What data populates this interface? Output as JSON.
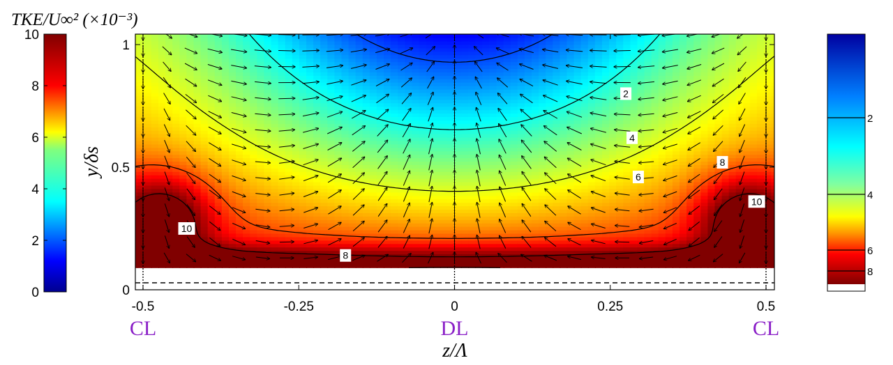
{
  "chart_data": {
    "type": "heatmap",
    "title": "",
    "colorbar_label": "TKE/U∞² (×10⁻³)",
    "xlabel": "z/Λ",
    "ylabel": "y/δs",
    "xlim": [
      -0.52,
      0.52
    ],
    "ylim": [
      0,
      1.05
    ],
    "x_ticks": [
      -0.5,
      -0.25,
      0,
      0.25,
      0.5
    ],
    "x_tick_labels": [
      "-0.5",
      "-0.25",
      "0",
      "0.25",
      "0.5"
    ],
    "y_ticks": [
      0,
      0.5,
      1
    ],
    "y_tick_labels": [
      "0",
      "0.5",
      "1"
    ],
    "colorbar_range": [
      0,
      10
    ],
    "colorbar_ticks": [
      0,
      2,
      4,
      6,
      8,
      10
    ],
    "colorbar_tick_labels": [
      "0",
      "2",
      "4",
      "6",
      "8",
      "10"
    ],
    "right_colorbar_ticks": [
      2,
      4,
      6,
      8
    ],
    "right_colorbar_tick_labels": [
      "2",
      "4",
      "6",
      "8"
    ],
    "position_markers": [
      {
        "label": "CL",
        "z": -0.5
      },
      {
        "label": "DL",
        "z": 0
      },
      {
        "label": "CL",
        "z": 0.5
      }
    ],
    "contour_levels": [
      {
        "level": 2,
        "label": "2"
      },
      {
        "level": 4,
        "label": "4"
      },
      {
        "level": 6,
        "label": "6"
      },
      {
        "level": 8,
        "label": "8"
      },
      {
        "level": 10,
        "label": "10"
      }
    ],
    "contour_label_spots": [
      {
        "text": "2",
        "z": 0.275,
        "y": 0.8
      },
      {
        "text": "4",
        "z": 0.285,
        "y": 0.62
      },
      {
        "text": "6",
        "z": 0.295,
        "y": 0.46
      },
      {
        "text": "8",
        "z": 0.43,
        "y": 0.52
      },
      {
        "text": "10",
        "z": 0.485,
        "y": 0.36
      },
      {
        "text": "10",
        "z": -0.43,
        "y": 0.25
      },
      {
        "text": "8",
        "z": -0.175,
        "y": 0.14
      }
    ],
    "measurement_floor_y": 0.09,
    "wall_line_y": 0.03,
    "quiver": "secondary-flow velocity vectors: downwash above DL (z=0), upwash near CL (z=±0.5)"
  }
}
